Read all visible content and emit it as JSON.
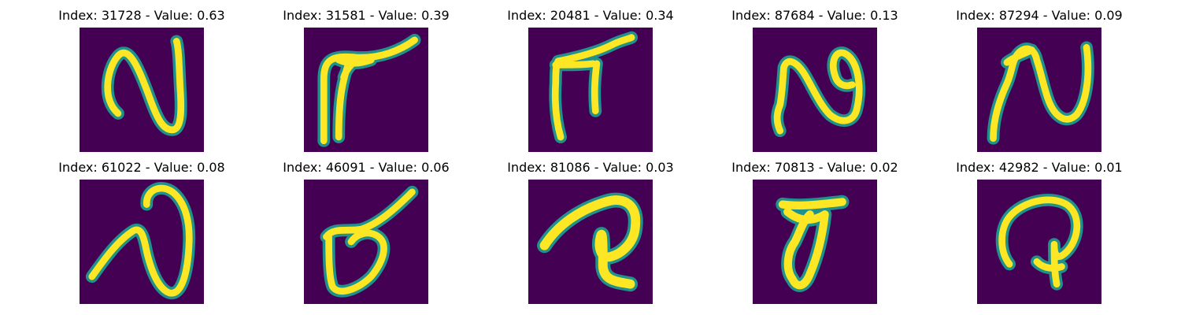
{
  "colors": {
    "background": "#440154",
    "edge": "#21918c",
    "midtone": "#5ec962",
    "stroke": "#fde725"
  },
  "panels": [
    {
      "index": "31728",
      "value": "0.63",
      "title": "Index: 31728 - Value: 0.63",
      "glyph": "stroke-shape-n"
    },
    {
      "index": "31581",
      "value": "0.39",
      "title": "Index: 31581 - Value: 0.39",
      "glyph": "stroke-shape-table"
    },
    {
      "index": "20481",
      "value": "0.34",
      "title": "Index: 20481 - Value: 0.34",
      "glyph": "stroke-shape-table"
    },
    {
      "index": "87684",
      "value": "0.13",
      "title": "Index: 87684 - Value: 0.13",
      "glyph": "stroke-shape-curl"
    },
    {
      "index": "87294",
      "value": "0.09",
      "title": "Index: 87294 - Value: 0.09",
      "glyph": "stroke-shape-wave"
    },
    {
      "index": "61022",
      "value": "0.08",
      "title": "Index: 61022 - Value: 0.08",
      "glyph": "stroke-shape-hook"
    },
    {
      "index": "46091",
      "value": "0.06",
      "title": "Index: 46091 - Value: 0.06",
      "glyph": "stroke-shape-loop"
    },
    {
      "index": "81086",
      "value": "0.03",
      "title": "Index: 81086 - Value: 0.03",
      "glyph": "stroke-shape-knot"
    },
    {
      "index": "70813",
      "value": "0.02",
      "title": "Index: 70813 - Value: 0.02",
      "glyph": "stroke-shape-cup"
    },
    {
      "index": "42982",
      "value": "0.01",
      "title": "Index: 42982 - Value: 0.01",
      "glyph": "stroke-shape-spiral"
    }
  ]
}
